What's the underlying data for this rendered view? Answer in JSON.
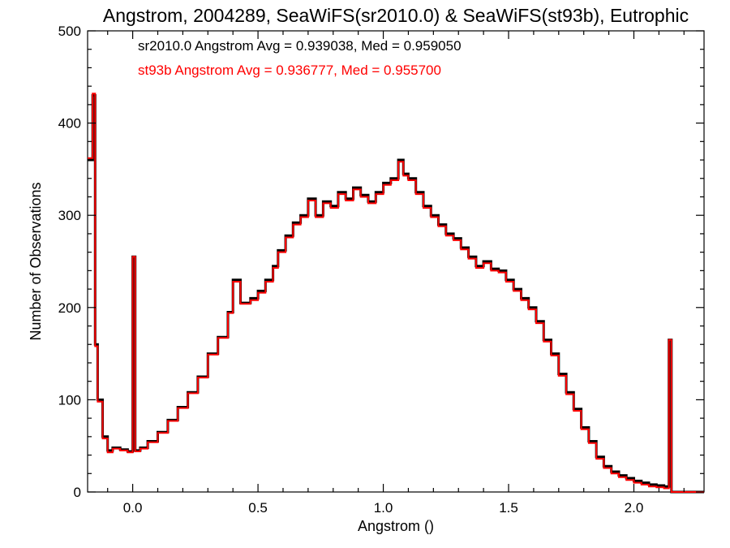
{
  "chart_data": {
    "type": "line",
    "step": true,
    "title": "Angstrom, 2004289, SeaWiFS(sr2010.0) & SeaWiFS(st93b), Eutrophic",
    "xlabel": "Angstrom ()",
    "ylabel": "Number of Observations",
    "xlim": [
      -0.18,
      2.28
    ],
    "ylim": [
      0,
      500
    ],
    "x_ticks": [
      0.0,
      0.5,
      1.0,
      1.5,
      2.0
    ],
    "x_tick_labels": [
      "0.0",
      "0.5",
      "1.0",
      "1.5",
      "2.0"
    ],
    "y_ticks": [
      0,
      100,
      200,
      300,
      400,
      500
    ],
    "y_tick_labels": [
      "0",
      "100",
      "200",
      "300",
      "400",
      "500"
    ],
    "grid": false,
    "annotations": [
      {
        "text": "sr2010.0 Angstrom Avg = 0.939038, Med = 0.959050",
        "color": "#000000"
      },
      {
        "text": "st93b Angstrom Avg = 0.936777, Med = 0.955700",
        "color": "#ff0000"
      }
    ],
    "series": [
      {
        "color": "#000000",
        "points": [
          [
            -0.18,
            360
          ],
          [
            -0.16,
            430
          ],
          [
            -0.15,
            160
          ],
          [
            -0.14,
            100
          ],
          [
            -0.12,
            60
          ],
          [
            -0.1,
            45
          ],
          [
            -0.08,
            48
          ],
          [
            -0.05,
            46
          ],
          [
            -0.02,
            44
          ],
          [
            0.0,
            255
          ],
          [
            0.01,
            45
          ],
          [
            0.03,
            48
          ],
          [
            0.06,
            55
          ],
          [
            0.1,
            65
          ],
          [
            0.14,
            78
          ],
          [
            0.18,
            92
          ],
          [
            0.22,
            108
          ],
          [
            0.26,
            125
          ],
          [
            0.3,
            150
          ],
          [
            0.34,
            168
          ],
          [
            0.38,
            195
          ],
          [
            0.4,
            230
          ],
          [
            0.43,
            205
          ],
          [
            0.47,
            210
          ],
          [
            0.5,
            218
          ],
          [
            0.53,
            230
          ],
          [
            0.56,
            245
          ],
          [
            0.58,
            262
          ],
          [
            0.61,
            278
          ],
          [
            0.64,
            292
          ],
          [
            0.67,
            300
          ],
          [
            0.7,
            318
          ],
          [
            0.73,
            300
          ],
          [
            0.76,
            315
          ],
          [
            0.79,
            310
          ],
          [
            0.82,
            325
          ],
          [
            0.85,
            318
          ],
          [
            0.88,
            330
          ],
          [
            0.91,
            322
          ],
          [
            0.94,
            315
          ],
          [
            0.97,
            325
          ],
          [
            1.0,
            335
          ],
          [
            1.03,
            340
          ],
          [
            1.06,
            360
          ],
          [
            1.08,
            345
          ],
          [
            1.1,
            340
          ],
          [
            1.13,
            325
          ],
          [
            1.16,
            310
          ],
          [
            1.19,
            300
          ],
          [
            1.22,
            290
          ],
          [
            1.25,
            280
          ],
          [
            1.28,
            275
          ],
          [
            1.31,
            265
          ],
          [
            1.34,
            255
          ],
          [
            1.37,
            245
          ],
          [
            1.4,
            250
          ],
          [
            1.43,
            242
          ],
          [
            1.46,
            240
          ],
          [
            1.49,
            230
          ],
          [
            1.52,
            220
          ],
          [
            1.55,
            210
          ],
          [
            1.58,
            200
          ],
          [
            1.61,
            185
          ],
          [
            1.64,
            165
          ],
          [
            1.67,
            150
          ],
          [
            1.7,
            128
          ],
          [
            1.73,
            108
          ],
          [
            1.76,
            90
          ],
          [
            1.79,
            70
          ],
          [
            1.82,
            55
          ],
          [
            1.85,
            38
          ],
          [
            1.88,
            28
          ],
          [
            1.91,
            22
          ],
          [
            1.94,
            18
          ],
          [
            1.97,
            15
          ],
          [
            2.0,
            12
          ],
          [
            2.03,
            10
          ],
          [
            2.06,
            8
          ],
          [
            2.09,
            7
          ],
          [
            2.12,
            6
          ],
          [
            2.14,
            165
          ],
          [
            2.15,
            0
          ],
          [
            2.28,
            0
          ]
        ]
      },
      {
        "color": "#ff0000",
        "points": [
          [
            -0.18,
            362
          ],
          [
            -0.16,
            432
          ],
          [
            -0.15,
            158
          ],
          [
            -0.14,
            98
          ],
          [
            -0.12,
            58
          ],
          [
            -0.1,
            43
          ],
          [
            -0.08,
            47
          ],
          [
            -0.05,
            45
          ],
          [
            -0.02,
            43
          ],
          [
            0.0,
            255
          ],
          [
            0.01,
            44
          ],
          [
            0.03,
            47
          ],
          [
            0.06,
            54
          ],
          [
            0.1,
            64
          ],
          [
            0.14,
            77
          ],
          [
            0.18,
            91
          ],
          [
            0.22,
            107
          ],
          [
            0.26,
            124
          ],
          [
            0.3,
            149
          ],
          [
            0.34,
            167
          ],
          [
            0.38,
            194
          ],
          [
            0.4,
            228
          ],
          [
            0.43,
            204
          ],
          [
            0.47,
            208
          ],
          [
            0.5,
            216
          ],
          [
            0.53,
            228
          ],
          [
            0.56,
            243
          ],
          [
            0.58,
            260
          ],
          [
            0.61,
            276
          ],
          [
            0.64,
            290
          ],
          [
            0.67,
            298
          ],
          [
            0.7,
            316
          ],
          [
            0.73,
            298
          ],
          [
            0.76,
            313
          ],
          [
            0.79,
            308
          ],
          [
            0.82,
            323
          ],
          [
            0.85,
            316
          ],
          [
            0.88,
            328
          ],
          [
            0.91,
            320
          ],
          [
            0.94,
            313
          ],
          [
            0.97,
            323
          ],
          [
            1.0,
            333
          ],
          [
            1.03,
            338
          ],
          [
            1.06,
            358
          ],
          [
            1.08,
            343
          ],
          [
            1.1,
            338
          ],
          [
            1.13,
            323
          ],
          [
            1.16,
            308
          ],
          [
            1.19,
            298
          ],
          [
            1.22,
            288
          ],
          [
            1.25,
            278
          ],
          [
            1.28,
            273
          ],
          [
            1.31,
            263
          ],
          [
            1.34,
            253
          ],
          [
            1.37,
            243
          ],
          [
            1.4,
            248
          ],
          [
            1.43,
            240
          ],
          [
            1.46,
            238
          ],
          [
            1.49,
            228
          ],
          [
            1.52,
            218
          ],
          [
            1.55,
            208
          ],
          [
            1.58,
            198
          ],
          [
            1.61,
            183
          ],
          [
            1.64,
            163
          ],
          [
            1.67,
            148
          ],
          [
            1.7,
            126
          ],
          [
            1.73,
            106
          ],
          [
            1.76,
            88
          ],
          [
            1.79,
            68
          ],
          [
            1.82,
            53
          ],
          [
            1.85,
            36
          ],
          [
            1.88,
            26
          ],
          [
            1.91,
            20
          ],
          [
            1.94,
            16
          ],
          [
            1.97,
            13
          ],
          [
            2.0,
            10
          ],
          [
            2.03,
            8
          ],
          [
            2.06,
            6
          ],
          [
            2.09,
            5
          ],
          [
            2.12,
            4
          ],
          [
            2.14,
            165
          ],
          [
            2.15,
            0
          ],
          [
            2.28,
            0
          ]
        ]
      }
    ]
  }
}
